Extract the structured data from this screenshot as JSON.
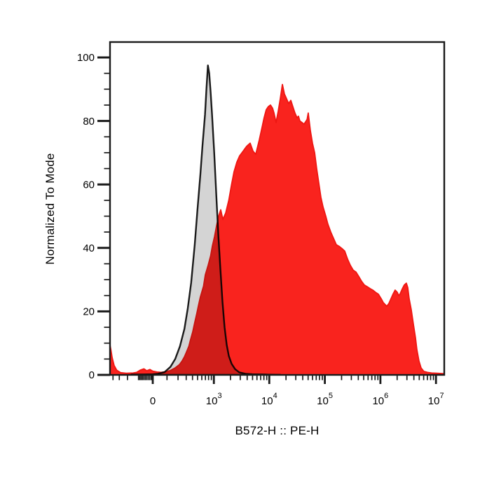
{
  "figure": {
    "background": "#ffffff",
    "plot_border_color": "#1a1a1a"
  },
  "chart_data": {
    "type": "area",
    "subtype": "flow-cytometry-histogram-overlay",
    "title": "",
    "xlabel": "B572-H :: PE-H",
    "ylabel": "Normalized To Mode",
    "grid": "off",
    "legend": "none",
    "x_axis": {
      "scale": "biexponential-asinh",
      "range_approx": [
        -460,
        14000000
      ],
      "major_ticks": [
        {
          "value": 0,
          "base": "0",
          "exp": ""
        },
        {
          "value": 1000,
          "base": "10",
          "exp": "3"
        },
        {
          "value": 10000,
          "base": "10",
          "exp": "4"
        },
        {
          "value": 100000,
          "base": "10",
          "exp": "5"
        },
        {
          "value": 1000000,
          "base": "10",
          "exp": "6"
        },
        {
          "value": 10000000,
          "base": "10",
          "exp": "7"
        }
      ],
      "minor_ticks": [
        -400,
        -300,
        -200,
        -100,
        -90,
        -80,
        -70,
        -60,
        -50,
        -40,
        -30,
        -20,
        -10,
        100,
        200,
        300,
        400,
        500,
        600,
        700,
        800,
        900,
        2000,
        3000,
        4000,
        5000,
        6000,
        7000,
        8000,
        9000,
        20000,
        30000,
        40000,
        50000,
        60000,
        70000,
        80000,
        90000,
        200000,
        300000,
        400000,
        500000,
        600000,
        700000,
        800000,
        900000,
        2000000,
        3000000,
        4000000,
        5000000,
        6000000,
        7000000,
        8000000,
        9000000
      ]
    },
    "y_axis": {
      "range": [
        0,
        100
      ],
      "major_ticks": [
        0,
        20,
        40,
        60,
        80,
        100
      ],
      "minor_tick_step": 5
    },
    "series": [
      {
        "name": "gray-outline-histogram",
        "fill": "#d4d4d4",
        "stroke": "#1a1a1a",
        "stroke_width": 2.4,
        "blend": "normal",
        "points": [
          [
            -160,
            0.1
          ],
          [
            -60,
            0.15
          ],
          [
            0,
            0.2
          ],
          [
            33,
            0.35
          ],
          [
            82,
            0.9
          ],
          [
            127,
            2.5
          ],
          [
            171,
            5
          ],
          [
            221,
            9
          ],
          [
            276,
            14.5
          ],
          [
            323,
            21
          ],
          [
            376,
            29
          ],
          [
            442,
            41
          ],
          [
            497,
            52
          ],
          [
            563,
            63
          ],
          [
            617,
            72
          ],
          [
            689,
            82
          ],
          [
            731,
            90
          ],
          [
            779,
            97.5
          ],
          [
            824,
            95
          ],
          [
            874,
            89
          ],
          [
            927,
            82
          ],
          [
            1014,
            70
          ],
          [
            1106,
            57
          ],
          [
            1206,
            44
          ],
          [
            1316,
            33
          ],
          [
            1435,
            23
          ],
          [
            1566,
            15
          ],
          [
            1709,
            9.5
          ],
          [
            1864,
            6
          ],
          [
            2096,
            3.5
          ],
          [
            2423,
            1.8
          ],
          [
            2884,
            0.8
          ],
          [
            3745,
            0.35
          ],
          [
            4943,
            0.2
          ],
          [
            8816,
            0.1
          ],
          [
            15760,
            0.05
          ]
        ]
      },
      {
        "name": "red-filled-histogram",
        "fill": "#f9231e",
        "stroke": "#ee1713",
        "stroke_width": 1.8,
        "blend": "multiply",
        "points": [
          [
            -458,
            9.5
          ],
          [
            -440,
            8
          ],
          [
            -416,
            5.5
          ],
          [
            -381,
            3
          ],
          [
            -339,
            1.5
          ],
          [
            -282,
            0.7
          ],
          [
            -214,
            0.5
          ],
          [
            -145,
            0.6
          ],
          [
            -115,
            0.8
          ],
          [
            -87,
            1.5
          ],
          [
            -60,
            1.9
          ],
          [
            -40,
            1.3
          ],
          [
            -19,
            1.7
          ],
          [
            0,
            1.2
          ],
          [
            28,
            0.9
          ],
          [
            57,
            0.8
          ],
          [
            93,
            1
          ],
          [
            127,
            1.4
          ],
          [
            171,
            2.2
          ],
          [
            214,
            3.2
          ],
          [
            246,
            4.4
          ],
          [
            276,
            5.7
          ],
          [
            300,
            7
          ],
          [
            339,
            9
          ],
          [
            365,
            11
          ],
          [
            404,
            13.5
          ],
          [
            442,
            16.5
          ],
          [
            486,
            19.5
          ],
          [
            515,
            21.5
          ],
          [
            563,
            24.5
          ],
          [
            646,
            28
          ],
          [
            698,
            31.5
          ],
          [
            786,
            34.5
          ],
          [
            874,
            37.5
          ],
          [
            936,
            40.5
          ],
          [
            1026,
            43.5
          ],
          [
            1120,
            47
          ],
          [
            1222,
            50
          ],
          [
            1334,
            52
          ],
          [
            1456,
            49
          ],
          [
            1638,
            51
          ],
          [
            1864,
            55
          ],
          [
            2096,
            60
          ],
          [
            2320,
            64
          ],
          [
            2608,
            67
          ],
          [
            2928,
            69
          ],
          [
            3392,
            70.5
          ],
          [
            3920,
            72
          ],
          [
            4528,
            73
          ],
          [
            5088,
            70.5
          ],
          [
            5712,
            69.5
          ],
          [
            6608,
            74
          ],
          [
            7408,
            78
          ],
          [
            8080,
            81
          ],
          [
            8816,
            83.5
          ],
          [
            9616,
            84.5
          ],
          [
            10500,
            85
          ],
          [
            11470,
            84
          ],
          [
            12140,
            82.5
          ],
          [
            13250,
            79.5
          ],
          [
            14450,
            83
          ],
          [
            15760,
            87
          ],
          [
            17200,
            91.5
          ],
          [
            18750,
            88.5
          ],
          [
            20460,
            87
          ],
          [
            22320,
            85.5
          ],
          [
            24370,
            86.5
          ],
          [
            26560,
            84.5
          ],
          [
            28990,
            82.5
          ],
          [
            31620,
            81
          ],
          [
            33500,
            81.5
          ],
          [
            35520,
            80
          ],
          [
            38740,
            79.5
          ],
          [
            42270,
            79
          ],
          [
            46110,
            80
          ],
          [
            48000,
            80.5
          ],
          [
            50300,
            82.5
          ],
          [
            54880,
            77
          ],
          [
            59870,
            73
          ],
          [
            65380,
            70
          ],
          [
            71310,
            65
          ],
          [
            77810,
            60.5
          ],
          [
            84880,
            56
          ],
          [
            92610,
            53
          ],
          [
            104000,
            50
          ],
          [
            113400,
            47.5
          ],
          [
            127500,
            45
          ],
          [
            143200,
            43
          ],
          [
            161000,
            41
          ],
          [
            180600,
            40.5
          ],
          [
            202900,
            39.8
          ],
          [
            227800,
            39
          ],
          [
            256000,
            36.5
          ],
          [
            287500,
            34.5
          ],
          [
            322900,
            33
          ],
          [
            362900,
            32.4
          ],
          [
            407500,
            31
          ],
          [
            457800,
            29.5
          ],
          [
            514100,
            28.3
          ],
          [
            577900,
            27.8
          ],
          [
            649100,
            27.2
          ],
          [
            729100,
            26.7
          ],
          [
            819000,
            26
          ],
          [
            919800,
            25.4
          ],
          [
            1032000,
            24
          ],
          [
            1125000,
            22.8
          ],
          [
            1227000,
            22.1
          ],
          [
            1300000,
            21.6
          ],
          [
            1420000,
            22.5
          ],
          [
            1550000,
            24
          ],
          [
            1690000,
            25.5
          ],
          [
            1843000,
            26.7
          ],
          [
            2011000,
            26
          ],
          [
            2131000,
            25
          ],
          [
            2258000,
            25.5
          ],
          [
            2463000,
            27
          ],
          [
            2687000,
            28.3
          ],
          [
            2930000,
            28.9
          ],
          [
            3104000,
            27.5
          ],
          [
            3290000,
            24
          ],
          [
            3590000,
            20.5
          ],
          [
            3915000,
            16
          ],
          [
            4270000,
            11.7
          ],
          [
            4526000,
            8
          ],
          [
            4937000,
            4.4
          ],
          [
            5387000,
            2.2
          ],
          [
            6057000,
            1.1
          ],
          [
            7001000,
            0.8
          ],
          [
            8330000,
            0.6
          ],
          [
            10500000,
            0.5
          ],
          [
            13240000,
            0.4
          ],
          [
            14020000,
            0.4
          ]
        ]
      }
    ]
  }
}
